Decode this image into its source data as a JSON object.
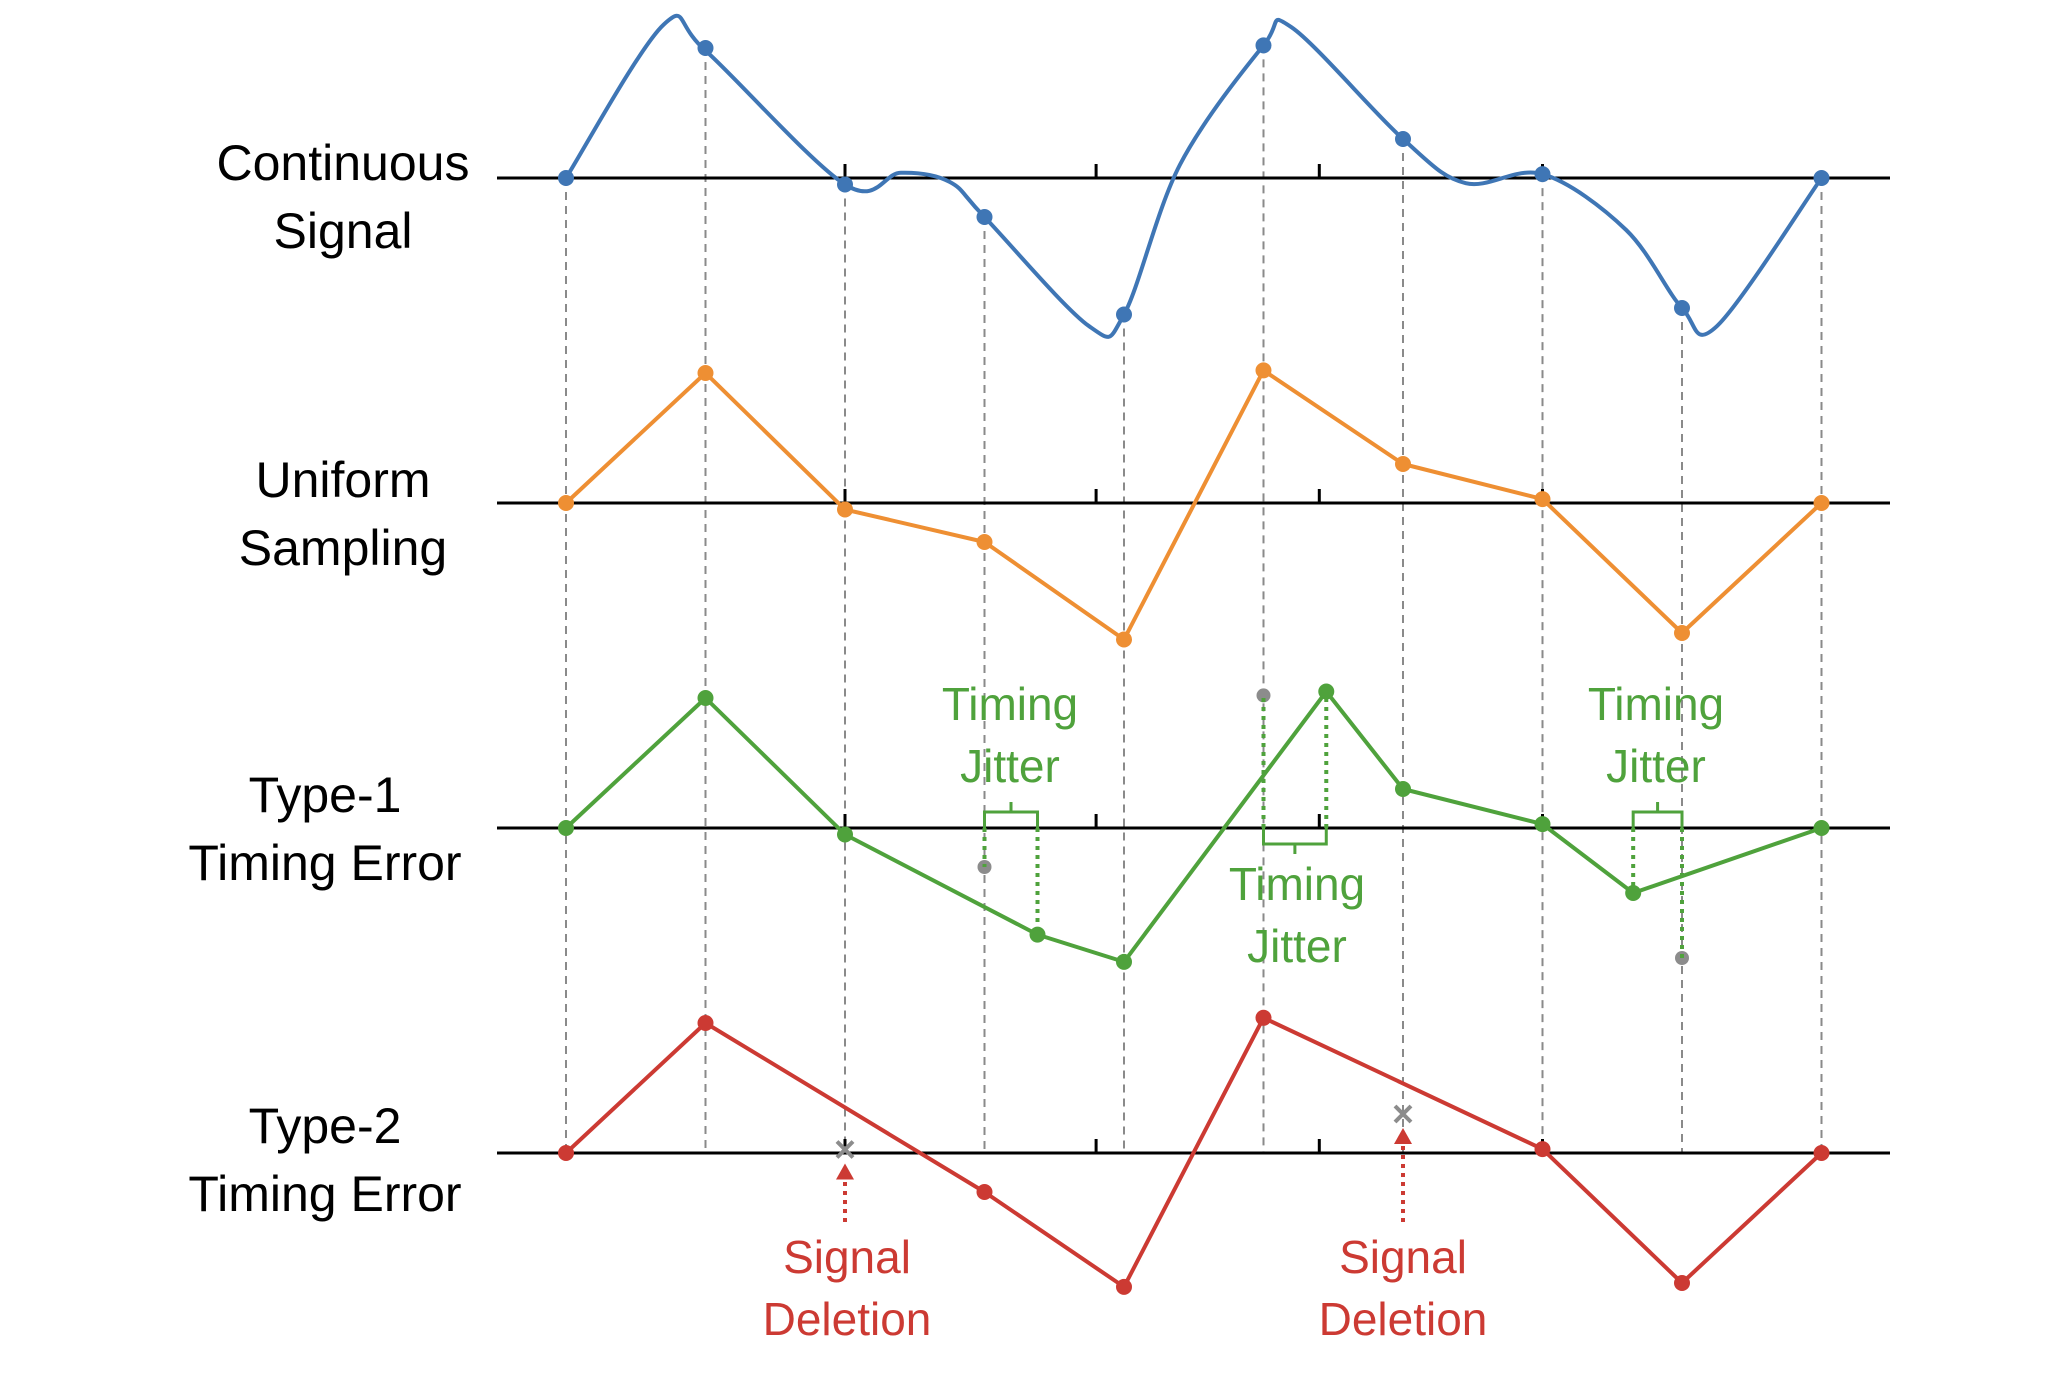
{
  "colors": {
    "blue": "#3F76B5",
    "orange": "#EE8F33",
    "green": "#4FA23C",
    "red": "#CC3A33",
    "gray": "#8C8C8C",
    "axis": "#000000",
    "guide": "#8A8A8A"
  },
  "sample_times": [
    0,
    1,
    2,
    3,
    4,
    5,
    6,
    7,
    8,
    9
  ],
  "rows": {
    "continuous": {
      "label": [
        "Continuous",
        "Signal"
      ],
      "curve_knots": [
        [
          0,
          0
        ],
        [
          0.7,
          1.18
        ],
        [
          1,
          0.98
        ],
        [
          2,
          -0.05
        ],
        [
          2.4,
          0.04
        ],
        [
          2.75,
          -0.03
        ],
        [
          3,
          -0.3
        ],
        [
          3.75,
          -1.14
        ],
        [
          4,
          -1.05
        ],
        [
          4.4,
          0.1
        ],
        [
          5,
          1.02
        ],
        [
          5.2,
          1.16
        ],
        [
          6,
          0.3
        ],
        [
          6.45,
          -0.04
        ],
        [
          7,
          0.03
        ],
        [
          7.6,
          -0.4
        ],
        [
          8,
          -1.0
        ],
        [
          8.25,
          -1.14
        ],
        [
          9,
          0
        ]
      ],
      "samples": [
        [
          0,
          0
        ],
        [
          1,
          1.0
        ],
        [
          2,
          -0.05
        ],
        [
          3,
          -0.3
        ],
        [
          4,
          -1.05
        ],
        [
          5,
          1.02
        ],
        [
          6,
          0.3
        ],
        [
          7,
          0.03
        ],
        [
          8,
          -1.0
        ],
        [
          9,
          0
        ]
      ]
    },
    "uniform": {
      "label": [
        "Uniform",
        "Sampling"
      ],
      "samples": [
        [
          0,
          0
        ],
        [
          1,
          1.0
        ],
        [
          2,
          -0.05
        ],
        [
          3,
          -0.3
        ],
        [
          4,
          -1.05
        ],
        [
          5,
          1.02
        ],
        [
          6,
          0.3
        ],
        [
          7,
          0.03
        ],
        [
          8,
          -1.0
        ],
        [
          9,
          0
        ]
      ]
    },
    "type1": {
      "label": [
        "Type-1",
        "Timing Error"
      ],
      "samples": [
        [
          0,
          0
        ],
        [
          1,
          1.0
        ],
        [
          2,
          -0.05
        ],
        [
          3.38,
          -0.82
        ],
        [
          4,
          -1.03
        ],
        [
          5.45,
          1.05
        ],
        [
          6,
          0.3
        ],
        [
          7,
          0.03
        ],
        [
          7.65,
          -0.5
        ],
        [
          9,
          0
        ]
      ],
      "original_positions": [
        [
          3,
          -0.3
        ],
        [
          5,
          1.02
        ],
        [
          8,
          -1.0
        ]
      ],
      "jitter_annotations": [
        {
          "text": [
            "Timing",
            "Jitter"
          ]
        },
        {
          "text": [
            "Timing",
            "Jitter"
          ]
        },
        {
          "text": [
            "Timing",
            "Jitter"
          ]
        }
      ]
    },
    "type2": {
      "label": [
        "Type-2",
        "Timing Error"
      ],
      "samples": [
        [
          0,
          0
        ],
        [
          1,
          1.0
        ],
        [
          3,
          -0.3
        ],
        [
          4,
          -1.03
        ],
        [
          5,
          1.04
        ],
        [
          7,
          0.03
        ],
        [
          8,
          -1.0
        ],
        [
          9,
          0
        ]
      ],
      "deleted": [
        [
          2,
          -0.05
        ],
        [
          6,
          0.3
        ]
      ],
      "deletion_annotations": [
        {
          "text": [
            "Signal",
            "Deletion"
          ]
        },
        {
          "text": [
            "Signal",
            "Deletion"
          ]
        }
      ]
    }
  }
}
